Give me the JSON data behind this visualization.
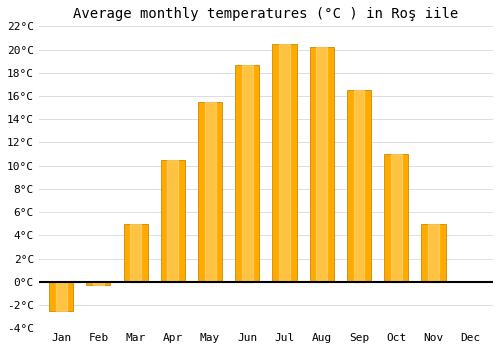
{
  "months": [
    "Jan",
    "Feb",
    "Mar",
    "Apr",
    "May",
    "Jun",
    "Jul",
    "Aug",
    "Sep",
    "Oct",
    "Nov",
    "Dec"
  ],
  "values": [
    -2.5,
    -0.3,
    5.0,
    10.5,
    15.5,
    18.7,
    20.5,
    20.2,
    16.5,
    11.0,
    5.0,
    0.0
  ],
  "bar_color_main": "#FFAA00",
  "bar_color_edge": "#CC8800",
  "background_color": "#FFFFFF",
  "plot_bg_color": "#FFFFFF",
  "title": "Average monthly temperatures (°C ) in Roş iile",
  "ylim": [
    -4,
    22
  ],
  "yticks": [
    -4,
    -2,
    0,
    2,
    4,
    6,
    8,
    10,
    12,
    14,
    16,
    18,
    20,
    22
  ],
  "grid_color": "#DDDDDD",
  "zero_line_color": "#000000",
  "title_fontsize": 10,
  "tick_fontsize": 8,
  "bar_width": 0.65
}
